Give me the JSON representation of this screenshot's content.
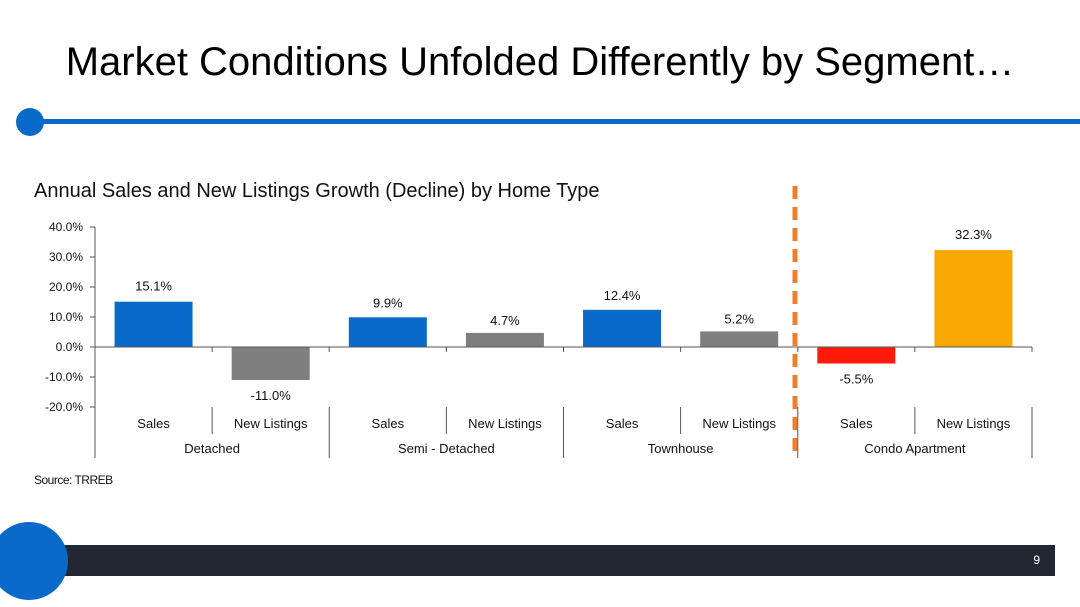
{
  "slide": {
    "title": "Market Conditions Unfolded Differently by Segment…",
    "source": "Source: TRREB",
    "page_number": "9"
  },
  "colors": {
    "accent": "#0a6ac9",
    "sales_bar": "#0a6ac9",
    "new_listings_bar": "#7f7f7f",
    "condo_sales_bar": "#ff1a0a",
    "condo_new_listings_bar": "#f8a800",
    "divider": "#f07f2b",
    "footer": "#212733"
  },
  "chart_data": {
    "type": "bar",
    "title": "Annual Sales and New Listings Growth (Decline) by Home Type",
    "ylim": [
      -20,
      40
    ],
    "yticks": [
      "40.0%",
      "30.0%",
      "20.0%",
      "10.0%",
      "0.0%",
      "-10.0%",
      "-20.0%"
    ],
    "ytick_values": [
      40,
      30,
      20,
      10,
      0,
      -10,
      -20
    ],
    "groups": [
      "Detached",
      "Semi - Detached",
      "Townhouse",
      "Condo Apartment"
    ],
    "categories": [
      "Sales",
      "New Listings",
      "Sales",
      "New Listings",
      "Sales",
      "New Listings",
      "Sales",
      "New Listings"
    ],
    "values": [
      15.1,
      -11.0,
      9.9,
      4.7,
      12.4,
      5.2,
      -5.5,
      32.3
    ],
    "value_labels": [
      "15.1%",
      "-11.0%",
      "9.9%",
      "4.7%",
      "12.4%",
      "5.2%",
      "-5.5%",
      "32.3%"
    ],
    "bar_colors": [
      "#0a6ac9",
      "#7f7f7f",
      "#0a6ac9",
      "#7f7f7f",
      "#0a6ac9",
      "#7f7f7f",
      "#ff1a0a",
      "#f8a800"
    ],
    "grid": false,
    "legend": "none"
  }
}
